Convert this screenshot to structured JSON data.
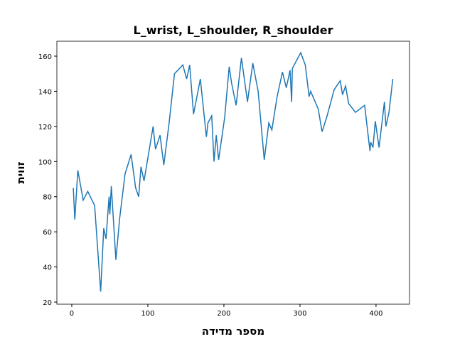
{
  "chart_data": {
    "type": "line",
    "title": "L_wrist, L_shoulder, R_shoulder",
    "x_label": "מספר מדידה",
    "y_label": "זווית",
    "x": [
      2,
      4,
      8,
      15,
      21,
      30,
      38,
      42,
      45,
      49,
      50,
      52,
      58,
      63,
      70,
      78,
      84,
      88,
      91,
      95,
      107,
      110,
      116,
      121,
      128,
      135,
      146,
      151,
      155,
      160,
      169,
      177,
      179,
      184,
      187,
      190,
      193,
      201,
      207,
      210,
      216,
      223,
      231,
      238,
      245,
      253,
      259,
      263,
      270,
      277,
      282,
      287,
      289,
      290,
      301,
      307,
      312,
      314,
      324,
      329,
      335,
      345,
      353,
      356,
      360,
      364,
      373,
      385,
      392,
      393,
      396,
      399,
      404,
      411,
      413,
      417,
      422
    ],
    "series": [
      {
        "name": "angle",
        "color": "#1f77b4",
        "values": [
          85,
          67,
          95,
          78,
          83,
          75,
          26,
          62,
          56,
          80,
          70,
          86,
          44,
          68,
          93,
          104,
          85,
          80,
          97,
          89,
          120,
          107,
          115,
          98,
          122,
          150,
          155,
          147,
          155,
          127,
          147,
          114,
          122,
          126,
          100,
          115,
          101,
          125,
          154,
          145,
          132,
          159,
          134,
          156,
          140,
          101,
          122,
          118,
          137,
          151,
          142,
          152,
          134,
          153,
          162,
          155,
          137,
          140,
          130,
          117,
          125,
          141,
          146,
          138,
          143,
          133,
          128,
          132,
          106,
          111,
          108,
          123,
          108,
          134,
          120,
          128,
          147
        ]
      }
    ],
    "xlim": [
      -19.6,
      444
    ],
    "ylim": [
      18.8,
      168.5
    ],
    "xticks": [
      0,
      100,
      200,
      300,
      400
    ],
    "yticks": [
      20,
      40,
      60,
      80,
      100,
      120,
      140,
      160
    ]
  }
}
